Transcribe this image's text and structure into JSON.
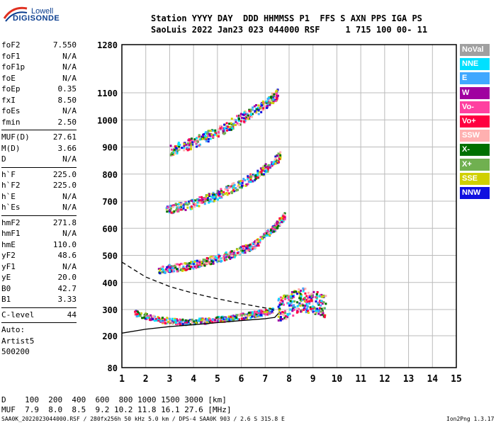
{
  "logo": {
    "line1": "Lowell",
    "line2": "DIGISONDE"
  },
  "header": {
    "line1": "Station YYYY DAY  DDD HHMMSS P1  FFS S AXN PPS IGA PS",
    "line2": "SaoLuis 2022 Jan23 023 044000 RSF     1 715 100 00- 11"
  },
  "params": [
    {
      "group": [
        {
          "name": "foF2",
          "value": "7.550"
        },
        {
          "name": "foF1",
          "value": "N/A"
        },
        {
          "name": "foF1p",
          "value": "N/A"
        },
        {
          "name": "foE",
          "value": "N/A"
        },
        {
          "name": "foEp",
          "value": "0.35"
        },
        {
          "name": "fxI",
          "value": "8.50"
        },
        {
          "name": "foEs",
          "value": "N/A"
        },
        {
          "name": "fmin",
          "value": "2.50"
        }
      ]
    },
    {
      "group": [
        {
          "name": "MUF(D)",
          "value": "27.61"
        },
        {
          "name": "M(D)",
          "value": "3.66"
        },
        {
          "name": "D",
          "value": "N/A"
        }
      ]
    },
    {
      "group": [
        {
          "name": "h`F",
          "value": "225.0"
        },
        {
          "name": "h`F2",
          "value": "225.0"
        },
        {
          "name": "h`E",
          "value": "N/A"
        },
        {
          "name": "h`Es",
          "value": "N/A"
        }
      ]
    },
    {
      "group": [
        {
          "name": "hmF2",
          "value": "271.8"
        },
        {
          "name": "hmF1",
          "value": "N/A"
        },
        {
          "name": "hmE",
          "value": "110.0"
        },
        {
          "name": "yF2",
          "value": "48.6"
        },
        {
          "name": "yF1",
          "value": "N/A"
        },
        {
          "name": "yE",
          "value": "20.0"
        },
        {
          "name": "B0",
          "value": "42.7"
        },
        {
          "name": "B1",
          "value": "3.33"
        }
      ]
    },
    {
      "group": [
        {
          "name": "C-level",
          "value": "44"
        }
      ]
    }
  ],
  "auto": {
    "line1": "Auto:",
    "line2": "Artist5",
    "line3": "500200"
  },
  "legend": [
    {
      "label": "NoVal",
      "color": "#a0a0a0"
    },
    {
      "label": "NNE",
      "color": "#00e0ff"
    },
    {
      "label": "E",
      "color": "#40a8ff"
    },
    {
      "label": "W",
      "color": "#a000a0"
    },
    {
      "label": "Vo-",
      "color": "#ff40a0"
    },
    {
      "label": "Vo+",
      "color": "#ff0040"
    },
    {
      "label": "SSW",
      "color": "#ffb0b0"
    },
    {
      "label": "X-",
      "color": "#007000"
    },
    {
      "label": "X+",
      "color": "#70b050"
    },
    {
      "label": "SSE",
      "color": "#d0d000"
    },
    {
      "label": "NNW",
      "color": "#1010e0"
    }
  ],
  "muf_table": {
    "row1": "D    100  200  400  600  800 1000 1500 3000 [km]",
    "row2": "MUF  7.9  8.0  8.5  9.2 10.2 11.8 16.1 27.6 [MHz]"
  },
  "footer": {
    "left": "SAA0K_2022023044000.RSF / 280fx256h 50 kHz 5.0 km / DPS-4 SAA0K 903 / 2.6 S 315.8 E",
    "right": "Ion2Png 1.3.17"
  },
  "chart_data": {
    "type": "scatter",
    "xlabel": "",
    "ylabel": "",
    "xlim": [
      1,
      15
    ],
    "ylim": [
      80,
      1280
    ],
    "x_ticks": [
      1,
      2,
      3,
      4,
      5,
      6,
      7,
      8,
      9,
      10,
      11,
      12,
      13,
      14,
      15
    ],
    "y_ticks": [
      80,
      200,
      300,
      400,
      500,
      600,
      700,
      800,
      900,
      1000,
      1100,
      1280
    ],
    "grid": true,
    "legend_position": "right",
    "traces": [
      {
        "name": "O-trace 1st hop",
        "freq": [
          1.5,
          2.5,
          3.5,
          4.5,
          5.5,
          6.5,
          7.3
        ],
        "height": [
          290,
          265,
          255,
          260,
          270,
          285,
          300
        ]
      },
      {
        "name": "O-trace 2nd hop",
        "freq": [
          2.5,
          3.5,
          4.5,
          5.5,
          6.5,
          7.3,
          7.8
        ],
        "height": [
          450,
          460,
          480,
          505,
          540,
          600,
          650
        ]
      },
      {
        "name": "O-trace 3rd hop",
        "freq": [
          2.8,
          3.8,
          4.8,
          5.8,
          6.8,
          7.6
        ],
        "height": [
          670,
          690,
          720,
          760,
          810,
          870
        ]
      },
      {
        "name": "O-trace 4th hop",
        "freq": [
          3.0,
          4.0,
          5.0,
          6.0,
          7.0,
          7.5
        ],
        "height": [
          890,
          920,
          960,
          1010,
          1060,
          1100
        ]
      },
      {
        "name": "spread F",
        "freq": [
          7.5,
          8.0,
          8.5,
          9.0,
          9.5
        ],
        "height": [
          300,
          320,
          340,
          330,
          310
        ]
      }
    ],
    "profile_solid": {
      "freq": [
        1.0,
        2.0,
        3.0,
        4.0,
        5.0,
        6.0,
        7.0,
        7.4,
        7.55
      ],
      "height": [
        210,
        225,
        235,
        242,
        250,
        258,
        265,
        270,
        285
      ]
    },
    "profile_dashed": {
      "freq": [
        1.0,
        2.0,
        3.0,
        4.0,
        5.0,
        6.0,
        7.0,
        7.4
      ],
      "height": [
        475,
        420,
        385,
        360,
        340,
        322,
        306,
        300
      ]
    }
  }
}
